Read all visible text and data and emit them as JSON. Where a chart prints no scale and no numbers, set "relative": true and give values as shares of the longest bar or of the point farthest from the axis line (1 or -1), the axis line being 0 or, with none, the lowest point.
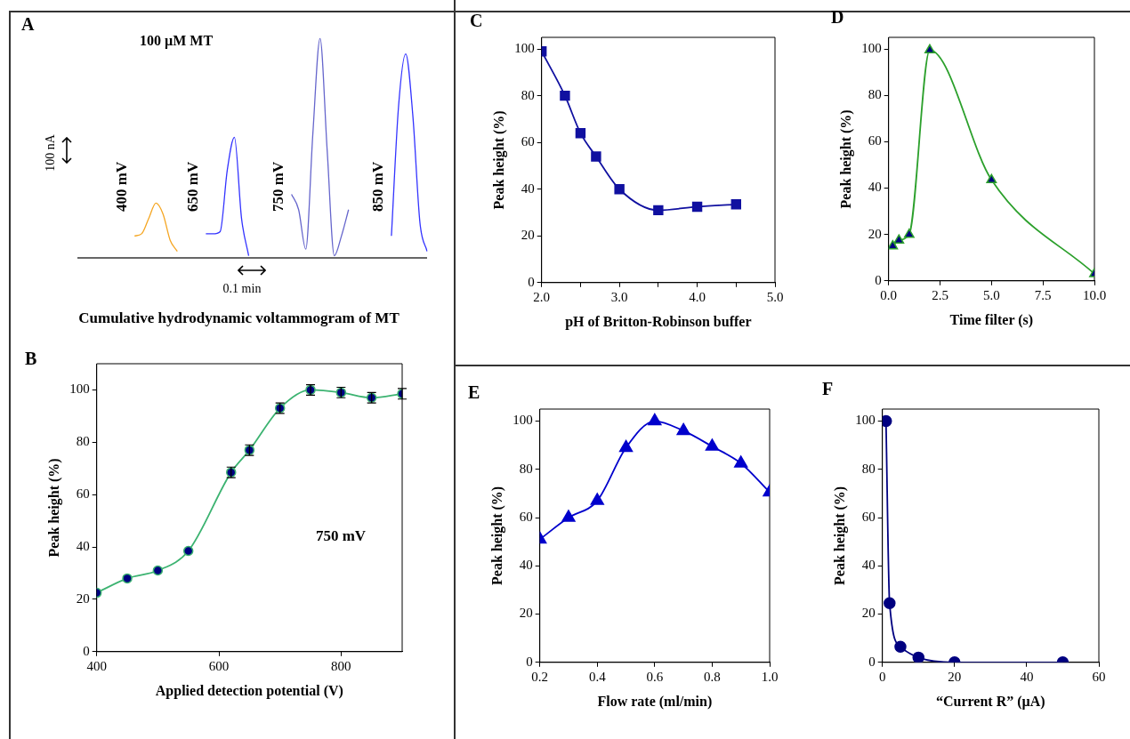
{
  "chart_data": [
    {
      "type": "line",
      "title": "A",
      "xlabel": "Cumulative hydrodynamic voltammogram of MT",
      "relative": true,
      "categories": [
        null,
        null,
        null,
        null,
        null,
        null,
        null,
        null,
        null,
        null,
        null,
        null,
        null,
        null,
        null,
        null,
        null,
        null,
        null,
        null,
        null,
        null,
        null,
        null,
        null,
        null,
        null,
        null,
        null,
        null,
        null,
        null,
        null,
        null,
        null,
        null,
        null,
        null,
        null,
        null,
        null,
        null,
        null,
        null,
        null,
        null,
        null,
        null,
        null,
        null
      ],
      "series": [
        {
          "name": "400 mV",
          "color": "#f5a623",
          "values": [
            null,
            null,
            null,
            null,
            null,
            null,
            null,
            null,
            0.1,
            0.11,
            0.18,
            0.25,
            0.2,
            0.08,
            0.03,
            null,
            null,
            null,
            null,
            null,
            null,
            null,
            null,
            null,
            null,
            null,
            null,
            null,
            null,
            null,
            null,
            null,
            null,
            null,
            null,
            null,
            null,
            null,
            null,
            null,
            null,
            null,
            null,
            null,
            null,
            null,
            null,
            null,
            null,
            null
          ]
        },
        {
          "name": "650 mV",
          "color": "#3333ff",
          "values": [
            null,
            null,
            null,
            null,
            null,
            null,
            null,
            null,
            null,
            null,
            null,
            null,
            null,
            null,
            null,
            null,
            null,
            null,
            0.11,
            0.11,
            0.12,
            0.4,
            0.55,
            0.18,
            0.01,
            null,
            null,
            null,
            null,
            null,
            null,
            null,
            null,
            null,
            null,
            null,
            null,
            null,
            null,
            null,
            null,
            null,
            null,
            null,
            null,
            null,
            null,
            null,
            null,
            null
          ]
        },
        {
          "name": "750 mV",
          "color": "#6666cc",
          "values": [
            null,
            null,
            null,
            null,
            null,
            null,
            null,
            null,
            null,
            null,
            null,
            null,
            null,
            null,
            null,
            null,
            null,
            null,
            null,
            null,
            null,
            null,
            null,
            null,
            null,
            null,
            null,
            null,
            null,
            null,
            0.29,
            0.22,
            0.04,
            0.57,
            1,
            0.49,
            0.01,
            0.1,
            0.22,
            null,
            null,
            null,
            null,
            null,
            null,
            null,
            null,
            null,
            null,
            null
          ]
        },
        {
          "name": "850 mV",
          "color": "#3333ff",
          "values": [
            null,
            null,
            null,
            null,
            null,
            null,
            null,
            null,
            null,
            null,
            null,
            null,
            null,
            null,
            null,
            null,
            null,
            null,
            null,
            null,
            null,
            null,
            null,
            null,
            null,
            null,
            null,
            null,
            null,
            null,
            null,
            null,
            null,
            null,
            null,
            null,
            null,
            null,
            null,
            null,
            null,
            null,
            null,
            null,
            0.1,
            0.69,
            0.93,
            0.65,
            0.16,
            0.03
          ]
        }
      ],
      "annotations": [
        "100 µM MT",
        "100 nA",
        "0.1 min"
      ]
    },
    {
      "type": "line",
      "title": "B",
      "xlabel": "Applied detection potential (V)",
      "ylabel": "Peak height (%)",
      "x": [
        400,
        450,
        500,
        550,
        620,
        650,
        700,
        750,
        800,
        850,
        900
      ],
      "series": [
        {
          "color": "#3cb371",
          "colors": [
            "#000080",
            "#000080",
            "#000080",
            "#000080",
            "#000080",
            "#000080",
            "#000080",
            "#000080",
            "#000080",
            "#000080",
            "#000080"
          ],
          "values": [
            22.5,
            28,
            31,
            38.5,
            68.5,
            77,
            93,
            100,
            99,
            97,
            98.5
          ],
          "errors": [
            null,
            null,
            null,
            null,
            2,
            2,
            2,
            2,
            2,
            2,
            2
          ]
        }
      ],
      "xlim": [
        400,
        900
      ],
      "xticks": [
        400,
        600,
        800
      ],
      "ylim": [
        0,
        110
      ],
      "yticks": [
        0,
        20,
        40,
        60,
        80,
        100
      ],
      "marker": "circle",
      "annotations": [
        "750 mV"
      ]
    },
    {
      "type": "line",
      "title": "C",
      "xlabel": "pH of Britton-Robinson buffer",
      "ylabel": "Peak height (%)",
      "x": [
        2.0,
        2.3,
        2.5,
        2.7,
        3.0,
        3.5,
        4.0,
        4.5
      ],
      "series": [
        {
          "color": "#1010a0",
          "values": [
            99,
            80,
            64,
            54,
            40,
            31,
            32.5,
            33.5
          ]
        }
      ],
      "xlim": [
        2,
        5
      ],
      "xticks": [
        {
          "value": 2,
          "label": "2.0"
        },
        {
          "value": 2.5,
          "label": null
        },
        {
          "value": 3,
          "label": "3.0"
        },
        {
          "value": 3.5,
          "label": null
        },
        {
          "value": 4,
          "label": "4.0"
        },
        {
          "value": 4.5,
          "label": null
        },
        {
          "value": 5,
          "label": "5.0"
        }
      ],
      "ylim": [
        0,
        105
      ],
      "yticks": [
        0,
        20,
        40,
        60,
        80,
        100
      ],
      "marker": "square"
    },
    {
      "type": "line",
      "title": "D",
      "xlabel": "Time filter (s)",
      "ylabel": "Peak height (%)",
      "x": [
        0.2,
        0.5,
        1.0,
        2.0,
        5.0,
        10.0
      ],
      "series": [
        {
          "color": "#2ca02c",
          "colors": [
            "#000080",
            "#000080",
            "#000080",
            "#000080",
            "#000080",
            "#000080"
          ],
          "values": [
            15,
            17.5,
            20,
            99.5,
            43.5,
            3
          ]
        }
      ],
      "xlim": [
        0,
        10
      ],
      "xticks": [
        {
          "value": 0,
          "label": "0.0"
        },
        {
          "value": 2.5,
          "label": "2.5"
        },
        {
          "value": 5,
          "label": "5.0"
        },
        {
          "value": 7.5,
          "label": "7.5"
        },
        {
          "value": 10,
          "label": "10.0"
        }
      ],
      "ylim": [
        0,
        105
      ],
      "yticks": [
        0,
        20,
        40,
        60,
        80,
        100
      ],
      "marker": "triangle"
    },
    {
      "type": "line",
      "title": "E",
      "xlabel": "Flow rate (ml/min)",
      "ylabel": "Peak height (%)",
      "x": [
        0.2,
        0.3,
        0.4,
        0.5,
        0.6,
        0.7,
        0.8,
        0.9,
        1.0
      ],
      "series": [
        {
          "color": "#0000cc",
          "values": [
            51,
            60,
            67,
            89,
            100,
            96,
            89.5,
            82.5,
            70.5
          ]
        }
      ],
      "xlim": [
        0.2,
        1.0
      ],
      "xticks": [
        0.2,
        0.4,
        0.6,
        0.8,
        {
          "value": 1,
          "label": "1.0"
        }
      ],
      "ylim": [
        0,
        105
      ],
      "yticks": [
        0,
        20,
        40,
        60,
        80,
        100
      ],
      "marker": "triangle"
    },
    {
      "type": "line",
      "title": "F",
      "xlabel": "“Current R” (µA)",
      "ylabel": "Peak height (%)",
      "x": [
        1,
        2,
        5,
        10,
        20,
        50
      ],
      "series": [
        {
          "color": "#000080",
          "values": [
            100,
            24.5,
            6.5,
            2,
            0,
            0
          ]
        }
      ],
      "xlim": [
        0,
        60
      ],
      "xticks": [
        0,
        20,
        40,
        60
      ],
      "ylim": [
        0,
        105
      ],
      "yticks": [
        0,
        20,
        40,
        60,
        80,
        100
      ],
      "marker": "circle"
    }
  ]
}
